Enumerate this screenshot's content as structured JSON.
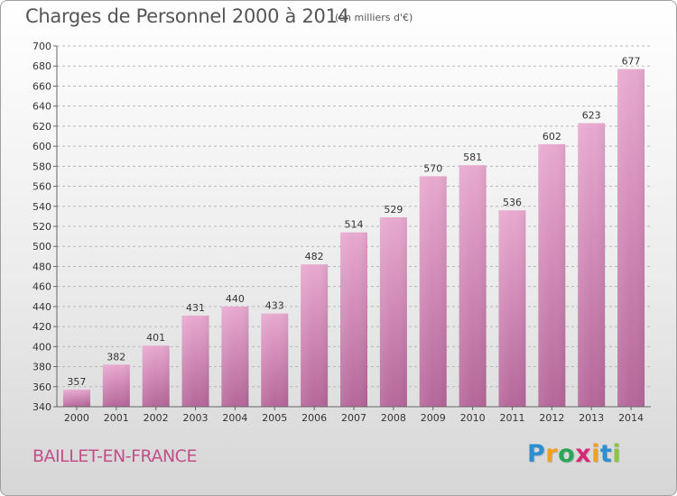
{
  "header": {
    "title": "Charges de Personnel 2000 à 2014",
    "subtitle": "(en milliers d'€)"
  },
  "footer": {
    "place": "BAILLET-EN-FRANCE",
    "logo": {
      "letters": [
        "P",
        "r",
        "o",
        "x",
        "i",
        "t",
        "i"
      ],
      "colors": [
        "#2e8fd0",
        "#f0a020",
        "#2aa55a",
        "#d62a78",
        "#f0a020",
        "#2e8fd0",
        "#8cc63f"
      ]
    }
  },
  "colors": {
    "bar_top": "#e8a9cf",
    "bar_bottom": "#b5669a",
    "grid": "#b8b8b8",
    "axis": "#666666",
    "text": "#333333",
    "title": "#555555",
    "place": "#c0508a"
  },
  "chart_data": {
    "type": "bar",
    "title": "Charges de Personnel 2000 à 2014",
    "subtitle": "(en milliers d'€)",
    "categories": [
      "2000",
      "2001",
      "2002",
      "2003",
      "2004",
      "2005",
      "2006",
      "2007",
      "2008",
      "2009",
      "2010",
      "2011",
      "2012",
      "2013",
      "2014"
    ],
    "values": [
      357,
      382,
      401,
      431,
      440,
      433,
      482,
      514,
      529,
      570,
      581,
      536,
      602,
      623,
      677
    ],
    "ylim": [
      340,
      700
    ],
    "yticks": [
      340,
      360,
      380,
      400,
      420,
      440,
      460,
      480,
      500,
      520,
      540,
      560,
      580,
      600,
      620,
      640,
      660,
      680,
      700
    ],
    "grid": true,
    "data_labels": true,
    "legend": "none"
  }
}
